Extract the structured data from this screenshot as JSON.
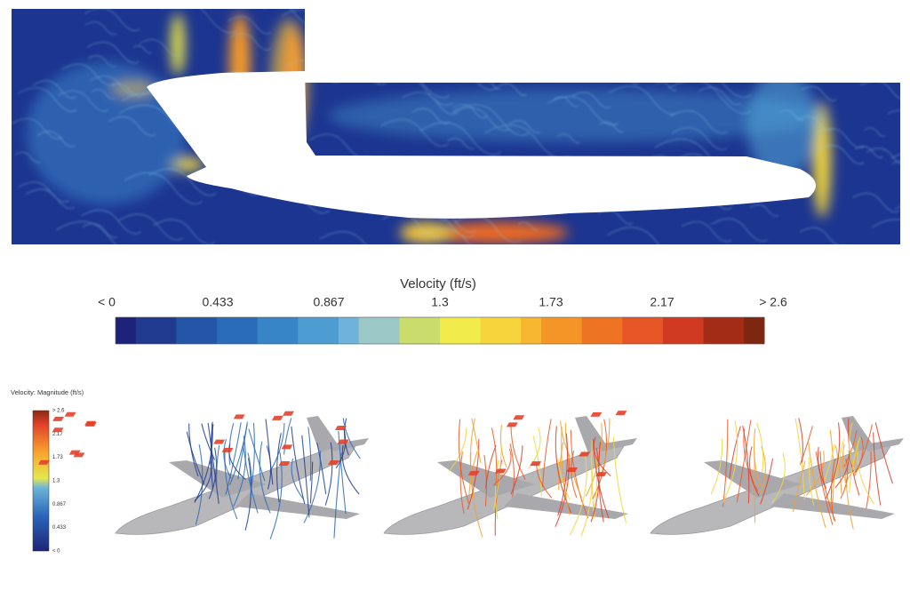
{
  "colorbar": {
    "title": "Velocity (ft/s)",
    "labels": [
      "< 0",
      "0.433",
      "0.867",
      "1.3",
      "1.73",
      "2.17",
      "> 2.6"
    ]
  },
  "small_legend": {
    "title": "Velocity: Magnitude (ft/s)",
    "labels": [
      "> 2.6",
      "2.17",
      "1.73",
      "1.3",
      "0.867",
      "0.433",
      "< 0"
    ]
  }
}
